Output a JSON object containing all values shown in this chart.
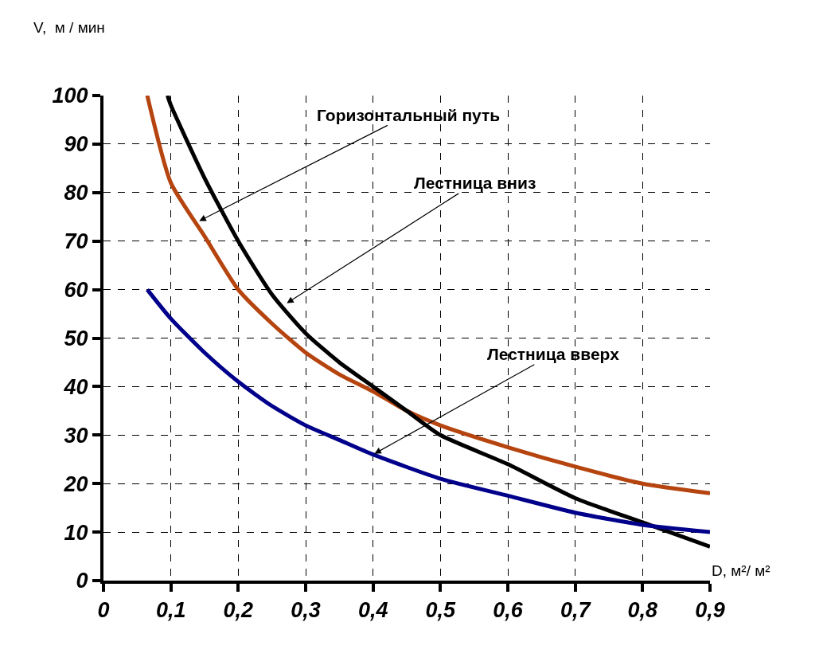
{
  "chart_data": {
    "type": "line",
    "xlabel": "D, м²/ м²",
    "ylabel": "V,  м / мин",
    "xlim": [
      0,
      0.9
    ],
    "xticks": [
      {
        "value": 0,
        "label": "0"
      },
      {
        "value": 0.1,
        "label": "0,1"
      },
      {
        "value": 0.2,
        "label": "0,2"
      },
      {
        "value": 0.3,
        "label": "0,3"
      },
      {
        "value": 0.4,
        "label": "0,4"
      },
      {
        "value": 0.5,
        "label": "0,5"
      },
      {
        "value": 0.6,
        "label": "0,6"
      },
      {
        "value": 0.7,
        "label": "0,7"
      },
      {
        "value": 0.8,
        "label": "0,8"
      },
      {
        "value": 0.9,
        "label": "0,9"
      }
    ],
    "ylim": [
      0,
      100
    ],
    "yticks": [
      0,
      10,
      20,
      30,
      40,
      50,
      60,
      70,
      80,
      90,
      100
    ],
    "grid": true,
    "marker": "none",
    "line_style": "solid",
    "series": [
      {
        "color": "#b5440f",
        "x": [
          0.065,
          0.1,
          0.15,
          0.2,
          0.25,
          0.3,
          0.35,
          0.4,
          0.45,
          0.5,
          0.6,
          0.7,
          0.8,
          0.9
        ],
        "values": [
          100,
          82,
          71,
          60,
          53,
          47,
          42.5,
          39,
          35,
          32,
          27.5,
          23.5,
          20,
          18
        ]
      },
      {
        "color": "#000000",
        "x": [
          0.095,
          0.1,
          0.15,
          0.2,
          0.25,
          0.3,
          0.35,
          0.4,
          0.45,
          0.5,
          0.6,
          0.7,
          0.8,
          0.9
        ],
        "values": [
          100,
          98,
          83,
          70,
          59,
          51,
          45,
          40,
          35,
          30,
          24,
          17,
          12,
          7
        ]
      },
      {
        "color": "#00008b",
        "x": [
          0.065,
          0.1,
          0.15,
          0.2,
          0.25,
          0.3,
          0.35,
          0.4,
          0.5,
          0.6,
          0.7,
          0.8,
          0.9
        ],
        "values": [
          60,
          54,
          47,
          41,
          36,
          32,
          29,
          26,
          21,
          17.5,
          14,
          11.5,
          10
        ]
      }
    ],
    "annotations": [
      {
        "text": "Горизонтальный путь",
        "x": 0.14,
        "y": 74
      },
      {
        "text": "Лестница вниз",
        "x": 0.27,
        "y": 57
      },
      {
        "text": "Лестница вверх",
        "x": 0.4,
        "y": 26
      }
    ]
  }
}
